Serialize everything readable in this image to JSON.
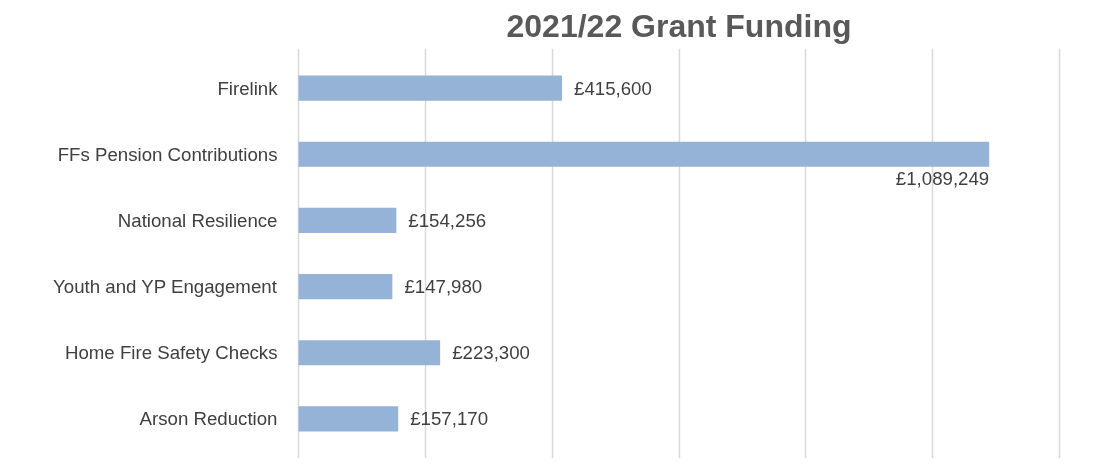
{
  "chart_data": {
    "type": "bar",
    "orientation": "horizontal",
    "title": "2021/22 Grant Funding",
    "categories": [
      "Firelink",
      "FFs Pension Contributions",
      "National Resilience",
      "Youth and YP Engagement",
      "Home Fire Safety Checks",
      "Arson Reduction"
    ],
    "values": [
      415600,
      1089249,
      154256,
      147980,
      223300,
      157170
    ],
    "value_labels": [
      "£415,600",
      "£1,089,249",
      "£154,256",
      "£147,980",
      "£223,300",
      "£157,170"
    ],
    "color": "#95b3d7",
    "xlim": [
      0,
      1200000
    ],
    "xticks": [
      {
        "value": 0,
        "label": null
      },
      {
        "value": 200000,
        "label": null
      },
      {
        "value": 400000,
        "label": null
      },
      {
        "value": 600000,
        "label": null
      },
      {
        "value": 800000,
        "label": null
      },
      {
        "value": 1000000,
        "label": null
      },
      {
        "value": 1200000,
        "label": null
      }
    ],
    "grid": "x",
    "tick_labels": "y"
  }
}
